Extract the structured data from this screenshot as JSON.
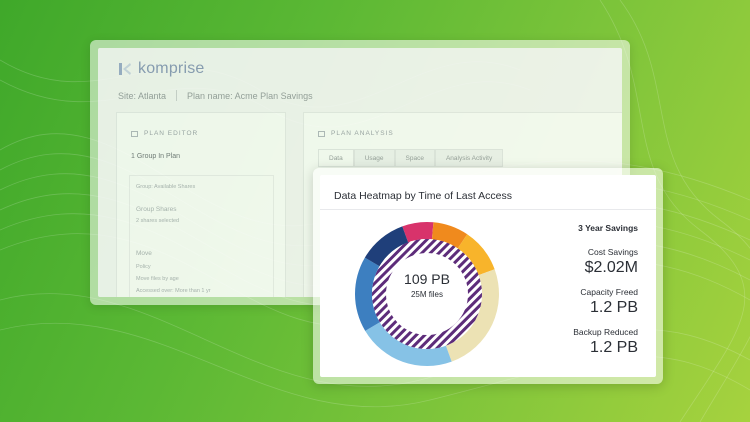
{
  "back_window": {
    "logo_text": "komprise",
    "site": "Site: Atlanta",
    "plan_name": "Plan name: Acme Plan Savings",
    "plan_editor": {
      "heading": "PLAN EDITOR",
      "group_count": "1 Group In Plan",
      "lines": [
        "Group: Available Shares",
        "Group Shares",
        "2 shares selected",
        "Move",
        "Policy",
        "Move files by age",
        "Accessed over: More than 1 yr"
      ]
    },
    "plan_analysis": {
      "heading": "PLAN ANALYSIS",
      "tabs": [
        "Data",
        "Usage",
        "Space",
        "Analysis Activity"
      ]
    }
  },
  "card": {
    "title": "Data Heatmap by Time of Last Access",
    "total": "109 PB",
    "files": "25M files",
    "savings_heading": "3 Year Savings",
    "metrics": [
      {
        "label": "Cost Savings",
        "value": "$2.02M"
      },
      {
        "label": "Capacity Freed",
        "value": "1.2 PB"
      },
      {
        "label": "Backup Reduced",
        "value": "1.2 PB"
      }
    ]
  },
  "chart_data": {
    "type": "pie",
    "title": "Data Heatmap by Time of Last Access",
    "center_label": "109 PB",
    "center_sublabel": "25M files",
    "segments": [
      {
        "value": 7,
        "color": "#d8336b"
      },
      {
        "value": 8,
        "color": "#f08a1d"
      },
      {
        "value": 10,
        "color": "#f8b42b"
      },
      {
        "value": 25,
        "color": "#ece2b4"
      },
      {
        "value": 22,
        "color": "#86c2e6"
      },
      {
        "value": 17,
        "color": "#3d7fc0"
      },
      {
        "value": 11,
        "color": "#1f3f7a"
      }
    ],
    "inner_pattern_colors": [
      "#5d2c7a",
      "#ffffff"
    ]
  }
}
